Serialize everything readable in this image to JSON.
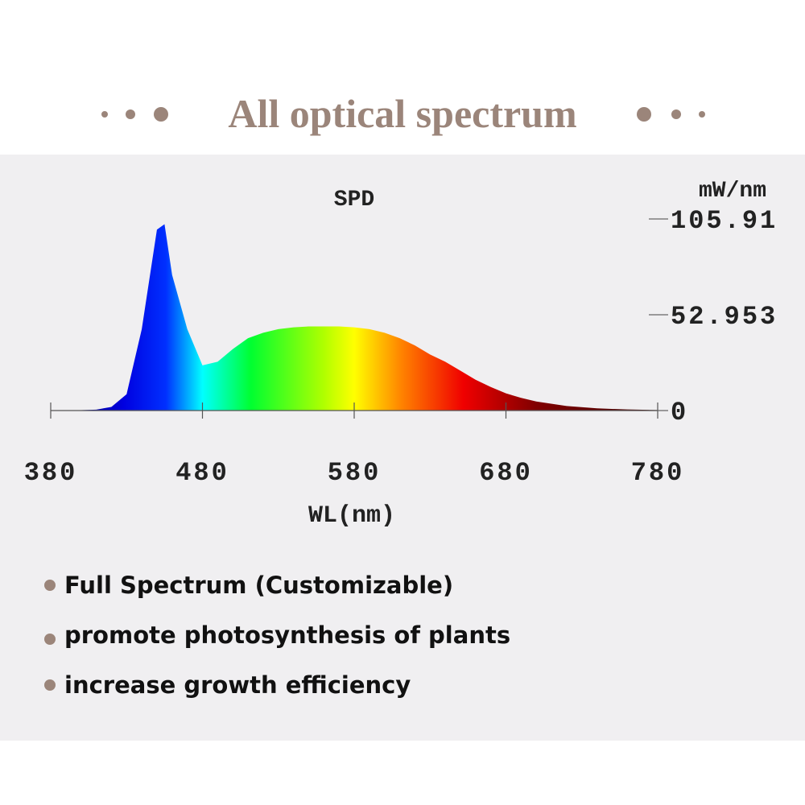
{
  "header": {
    "title": "All optical spectrum"
  },
  "chart_data": {
    "type": "area",
    "title": "SPD",
    "y_label": "mW/nm",
    "x_label": "WL(nm)",
    "x": [
      380,
      400,
      410,
      420,
      430,
      440,
      450,
      455,
      460,
      470,
      480,
      490,
      500,
      510,
      520,
      530,
      540,
      550,
      560,
      570,
      580,
      590,
      600,
      610,
      620,
      630,
      640,
      650,
      660,
      670,
      680,
      690,
      700,
      720,
      740,
      760,
      780
    ],
    "values": [
      0,
      0.2,
      0.5,
      2,
      9,
      45,
      100,
      103,
      75,
      45,
      25,
      27,
      34,
      40,
      43,
      45,
      46,
      46.5,
      46.5,
      46.5,
      46,
      45,
      43,
      40,
      36,
      31,
      27,
      22,
      17,
      13,
      9.5,
      7,
      5,
      2.5,
      1.2,
      0.6,
      0.3
    ],
    "xlim": [
      380,
      780
    ],
    "xticks": [
      380,
      480,
      580,
      680,
      780
    ],
    "ylim": [
      0,
      105.91
    ],
    "yticks": [
      0,
      52.953,
      105.91
    ]
  },
  "bullets": [
    "Full Spectrum  (Customizable)",
    "promote photosynthesis of plants",
    "increase growth efficiency"
  ]
}
